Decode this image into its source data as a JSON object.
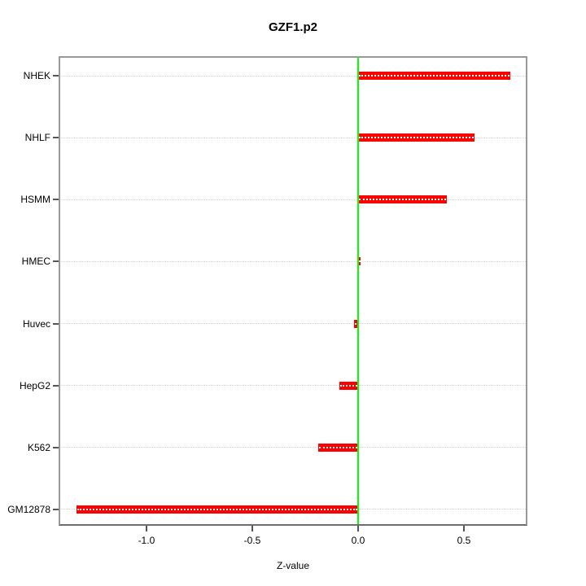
{
  "title": "GZF1.p2",
  "chart_data": {
    "type": "bar",
    "orientation": "horizontal",
    "title": "GZF1.p2",
    "categories": [
      "NHEK",
      "NHLF",
      "HSMM",
      "HMEC",
      "Huvec",
      "HepG2",
      "K562",
      "GM12878"
    ],
    "values": [
      0.72,
      0.55,
      0.42,
      0.01,
      -0.02,
      -0.09,
      -0.19,
      -1.33
    ],
    "xlabel": "Z-value",
    "ylabel": "",
    "xlim": [
      -1.415,
      0.8
    ],
    "x_ticks": [
      -1.0,
      -0.5,
      0.0,
      0.5
    ],
    "x_tick_labels": [
      "-1.0",
      "-0.5",
      "0.0",
      "0.5"
    ],
    "grid": true,
    "legend": "none",
    "zero_line_value": 0,
    "colors": {
      "bar": "#ff0000",
      "bar_stripe": "#ffffff",
      "zero_line": "#00ff00",
      "grid": "#d2d2d2",
      "box": "#999999",
      "tick": "#555555",
      "text": "#000000"
    }
  }
}
